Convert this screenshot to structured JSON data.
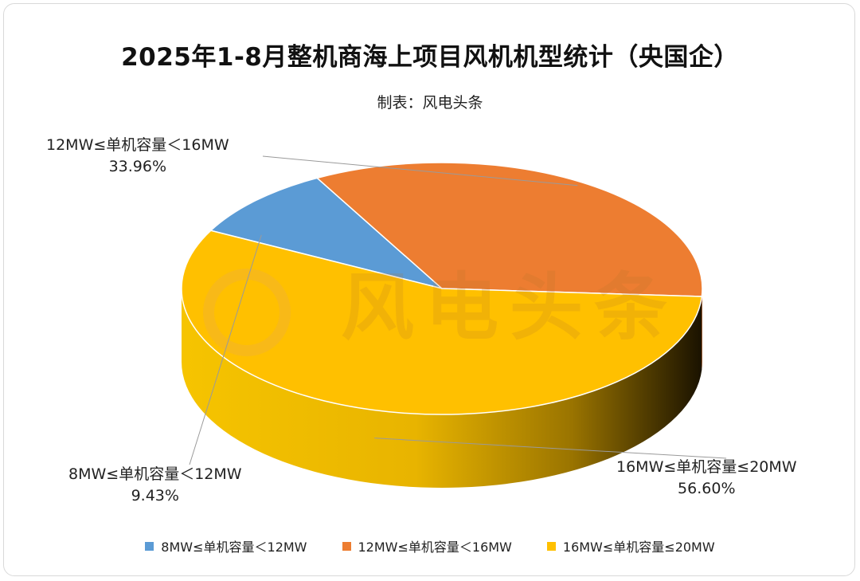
{
  "chart_data": {
    "type": "pie",
    "title": "2025年1-8月整机商海上项目风机机型统计（央国企）",
    "subtitle": "制表：风电头条",
    "watermark": "风电头条",
    "slices": [
      {
        "label": "8MW≤单机容量＜12MW",
        "value": 9.43,
        "value_label": "9.43%",
        "color": "#5B9BD5"
      },
      {
        "label": "12MW≤单机容量＜16MW",
        "value": 33.96,
        "value_label": "33.96%",
        "color": "#ED7D31"
      },
      {
        "label": "16MW≤单机容量≤20MW",
        "value": 56.6,
        "value_label": "56.60%",
        "color": "#FFC000"
      }
    ],
    "legend_position": "bottom",
    "style": "3d-exploded-pie"
  }
}
